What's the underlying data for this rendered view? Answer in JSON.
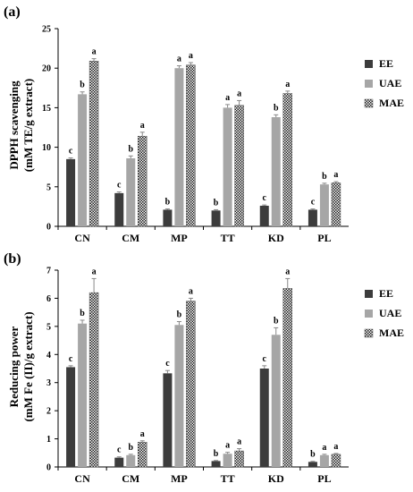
{
  "colors": {
    "EE": "#3c3c3c",
    "UAE": "#a6a6a6",
    "MAE_bg": "#ffffff",
    "MAE_dot": "#1a1a1a",
    "axis": "#000000",
    "error_bar": "#888888"
  },
  "chart_data": [
    {
      "type": "bar",
      "panel_label": "(a)",
      "title": "",
      "ylabel_line1": "DPPH scavenging",
      "ylabel_line2": "(mM TE/g extract)",
      "xlabel": "",
      "ylim": [
        0,
        25
      ],
      "yticks": [
        0,
        5,
        10,
        15,
        20,
        25
      ],
      "categories": [
        "CN",
        "CM",
        "MP",
        "TT",
        "KD",
        "PL"
      ],
      "legend_position": "right",
      "grid": false,
      "series": [
        {
          "name": "EE",
          "pattern": "solid-dark",
          "values": [
            8.5,
            4.2,
            2.1,
            2.0,
            2.6,
            2.1
          ],
          "errors": [
            0.15,
            0.15,
            0.1,
            0.1,
            0.1,
            0.1
          ],
          "labels": [
            "c",
            "c",
            "b",
            "b",
            "c",
            "c"
          ]
        },
        {
          "name": "UAE",
          "pattern": "solid-light",
          "values": [
            16.7,
            8.6,
            20.0,
            15.0,
            13.8,
            5.3
          ],
          "errors": [
            0.3,
            0.3,
            0.3,
            0.4,
            0.3,
            0.15
          ],
          "labels": [
            "b",
            "b",
            "a",
            "a",
            "b",
            "b"
          ]
        },
        {
          "name": "MAE",
          "pattern": "checker",
          "values": [
            20.9,
            11.4,
            20.4,
            15.3,
            16.8,
            5.5
          ],
          "errors": [
            0.3,
            0.5,
            0.3,
            0.6,
            0.3,
            0.15
          ],
          "labels": [
            "a",
            "a",
            "a",
            "a",
            "a",
            "a"
          ]
        }
      ]
    },
    {
      "type": "bar",
      "panel_label": "(b)",
      "title": "",
      "ylabel_line1": "Reducing power",
      "ylabel_line2": "(mM Fe (II)/g extract)",
      "xlabel": "",
      "ylim": [
        0,
        7
      ],
      "yticks": [
        0,
        1,
        2,
        3,
        4,
        5,
        6,
        7
      ],
      "categories": [
        "CN",
        "CM",
        "MP",
        "TT",
        "KD",
        "PL"
      ],
      "legend_position": "right",
      "grid": false,
      "series": [
        {
          "name": "EE",
          "pattern": "solid-dark",
          "values": [
            3.55,
            0.33,
            3.33,
            0.21,
            3.5,
            0.18
          ],
          "errors": [
            0.05,
            0.03,
            0.1,
            0.02,
            0.1,
            0.02
          ],
          "labels": [
            "c",
            "c",
            "c",
            "b",
            "c",
            "b"
          ]
        },
        {
          "name": "UAE",
          "pattern": "solid-light",
          "values": [
            5.1,
            0.42,
            5.05,
            0.47,
            4.7,
            0.42
          ],
          "errors": [
            0.12,
            0.03,
            0.12,
            0.05,
            0.25,
            0.03
          ],
          "labels": [
            "b",
            "b",
            "b",
            "a",
            "b",
            "a"
          ]
        },
        {
          "name": "MAE",
          "pattern": "checker",
          "values": [
            6.2,
            0.88,
            5.9,
            0.57,
            6.35,
            0.45
          ],
          "errors": [
            0.5,
            0.05,
            0.1,
            0.08,
            0.35,
            0.03
          ],
          "labels": [
            "a",
            "a",
            "a",
            "a",
            "a",
            "a"
          ]
        }
      ]
    }
  ]
}
